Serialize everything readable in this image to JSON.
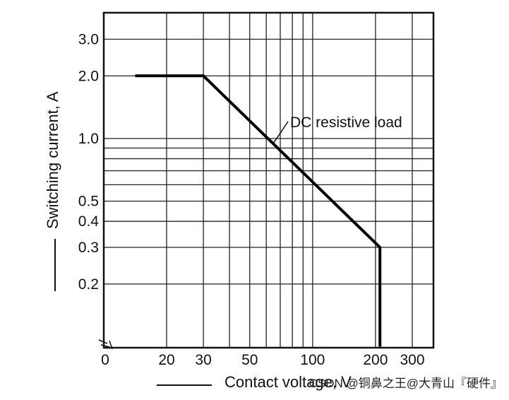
{
  "chart_data": {
    "type": "line",
    "xlabel": "Contact voltage, V",
    "ylabel": "Switching current, A",
    "x_scale": "log",
    "y_scale": "log",
    "grid": true,
    "x_ticks": [
      {
        "value": 20,
        "label": "20"
      },
      {
        "value": 30,
        "label": "30"
      },
      {
        "value": 50,
        "label": "50"
      },
      {
        "value": 100,
        "label": "100"
      },
      {
        "value": 200,
        "label": "200"
      },
      {
        "value": 300,
        "label": "300"
      }
    ],
    "x_origin_label": "0",
    "y_ticks": [
      {
        "value": 0.2,
        "label": "0.2"
      },
      {
        "value": 0.3,
        "label": "0.3"
      },
      {
        "value": 0.4,
        "label": "0.4"
      },
      {
        "value": 0.5,
        "label": "0.5"
      },
      {
        "value": 1.0,
        "label": "1.0"
      },
      {
        "value": 2.0,
        "label": "2.0"
      },
      {
        "value": 3.0,
        "label": "3.0"
      }
    ],
    "x_grid": [
      20,
      30,
      40,
      50,
      60,
      70,
      80,
      90,
      100,
      200,
      300
    ],
    "y_grid": [
      0.2,
      0.3,
      0.4,
      0.5,
      0.6,
      0.7,
      0.8,
      0.9,
      1.0,
      2.0,
      3.0
    ],
    "series": [
      {
        "values": [
          {
            "x": 10,
            "y": 2.0
          },
          {
            "x": 30,
            "y": 2.0
          },
          {
            "x": 210,
            "y": 0.3
          },
          {
            "x": 210,
            "y": 0.1
          }
        ]
      }
    ],
    "annotations": [
      {
        "text": "DC resistive load",
        "x": 65,
        "y": 0.95
      }
    ]
  },
  "watermark": "CSDN @铜鼻之王@大青山『硬件』"
}
